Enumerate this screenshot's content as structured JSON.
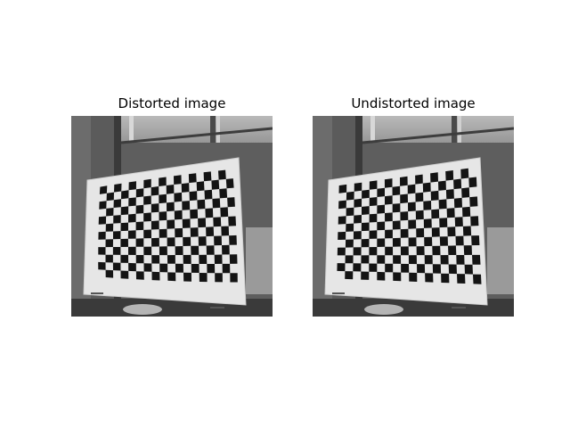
{
  "figure": {
    "panels": [
      {
        "title": "Distorted image"
      },
      {
        "title": "Undistorted image"
      }
    ]
  }
}
